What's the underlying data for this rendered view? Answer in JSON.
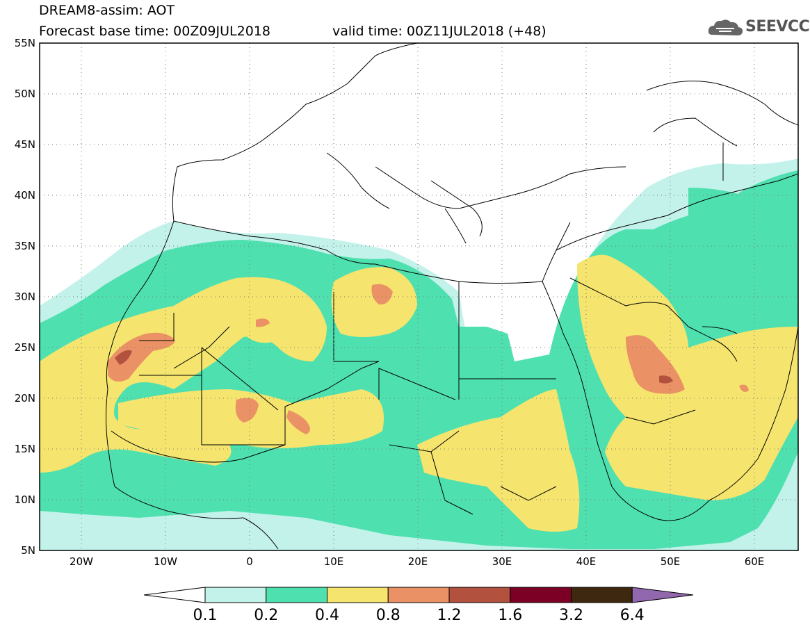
{
  "header": {
    "line1": "DREAM8-assim: AOT",
    "line2": "Forecast base time: 00Z09JUL2018",
    "line3": "valid time: 00Z11JUL2018 (+48)"
  },
  "logo": {
    "text": "SEEVCCC",
    "icon": "cloud-icon"
  },
  "map": {
    "lat_labels": [
      "55N",
      "50N",
      "45N",
      "40N",
      "35N",
      "30N",
      "25N",
      "20N",
      "15N",
      "10N",
      "5N"
    ],
    "lon_labels": [
      "20W",
      "10W",
      "0",
      "10E",
      "20E",
      "30E",
      "40E",
      "50E",
      "60E"
    ],
    "lat_range": [
      5,
      55
    ],
    "lon_range": [
      -25,
      65
    ],
    "grid": "dotted"
  },
  "colorbar": {
    "labels": [
      "0.1",
      "0.2",
      "0.4",
      "0.8",
      "1.2",
      "1.6",
      "3.2",
      "6.4"
    ],
    "colors": [
      "#ffffff",
      "#c3f2ea",
      "#4fe0b0",
      "#f5e46e",
      "#ea9265",
      "#b3513f",
      "#7c0025",
      "#3f2810",
      "#9168ad"
    ]
  }
}
